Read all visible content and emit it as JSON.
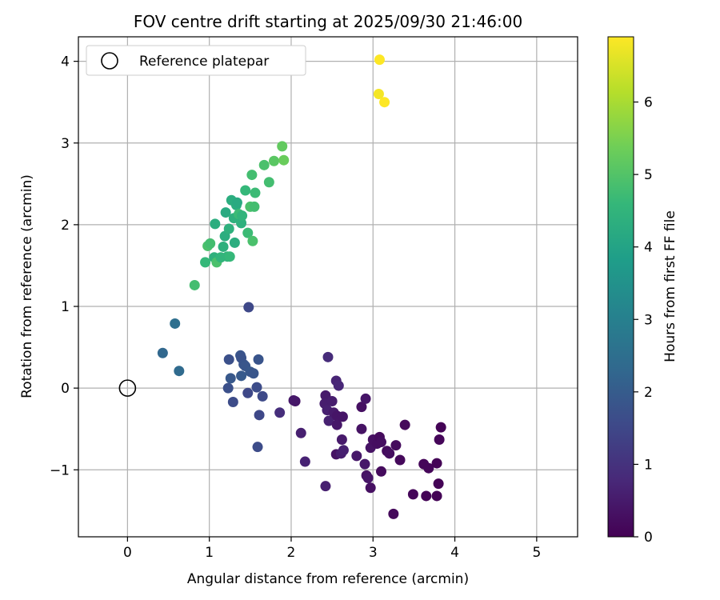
{
  "chart_data": {
    "type": "scatter",
    "title": "FOV centre drift starting at 2025/09/30 21:46:00",
    "xlabel": "Angular distance from reference (arcmin)",
    "ylabel": "Rotation from reference (arcmin)",
    "xlim": [
      -0.6,
      5.5
    ],
    "ylim": [
      -1.82,
      4.3
    ],
    "xticks": [
      0,
      1,
      2,
      3,
      4,
      5
    ],
    "yticks": [
      -1,
      0,
      1,
      2,
      3,
      4
    ],
    "ytick_labels": [
      "−1",
      "0",
      "1",
      "2",
      "3",
      "4"
    ],
    "grid": true,
    "legend": {
      "placement": "upper-left",
      "entries": [
        "Reference platepar"
      ]
    },
    "reference_point": {
      "x": 0,
      "y": 0,
      "label": "Reference platepar"
    },
    "colorbar": {
      "label": "Hours from first FF file",
      "min": 0,
      "max": 6.9,
      "ticks": [
        0,
        1,
        2,
        3,
        4,
        5,
        6
      ],
      "colormap": "viridis",
      "colors": [
        "#440154",
        "#482878",
        "#3e4989",
        "#31688e",
        "#26828e",
        "#1f9e89",
        "#35b779",
        "#6ece58",
        "#b5de2b",
        "#fde725"
      ]
    },
    "points": [
      {
        "x": 2.05,
        "y": -0.16,
        "hours": 0.4
      },
      {
        "x": 2.03,
        "y": -0.15,
        "hours": 0.45
      },
      {
        "x": 2.12,
        "y": -0.55,
        "hours": 0.6
      },
      {
        "x": 2.17,
        "y": -0.9,
        "hours": 0.65
      },
      {
        "x": 2.42,
        "y": -0.09,
        "hours": 0.5
      },
      {
        "x": 2.41,
        "y": -0.19,
        "hours": 0.55
      },
      {
        "x": 2.44,
        "y": -0.27,
        "hours": 0.6
      },
      {
        "x": 2.46,
        "y": -0.4,
        "hours": 0.62
      },
      {
        "x": 2.5,
        "y": -0.16,
        "hours": 0.55
      },
      {
        "x": 2.52,
        "y": -0.3,
        "hours": 0.5
      },
      {
        "x": 2.55,
        "y": 0.09,
        "hours": 0.7
      },
      {
        "x": 2.58,
        "y": 0.03,
        "hours": 0.75
      },
      {
        "x": 2.56,
        "y": -0.34,
        "hours": 0.4
      },
      {
        "x": 2.56,
        "y": -0.45,
        "hours": 0.45
      },
      {
        "x": 2.55,
        "y": -0.81,
        "hours": 0.35
      },
      {
        "x": 2.63,
        "y": -0.35,
        "hours": 0.4
      },
      {
        "x": 2.62,
        "y": -0.63,
        "hours": 0.5
      },
      {
        "x": 2.61,
        "y": -0.8,
        "hours": 0.55
      },
      {
        "x": 2.64,
        "y": -0.76,
        "hours": 0.6
      },
      {
        "x": 2.45,
        "y": 0.38,
        "hours": 0.85
      },
      {
        "x": 2.42,
        "y": -1.2,
        "hours": 0.6
      },
      {
        "x": 2.8,
        "y": -0.83,
        "hours": 0.45
      },
      {
        "x": 2.86,
        "y": -0.23,
        "hours": 0.3
      },
      {
        "x": 2.86,
        "y": -0.5,
        "hours": 0.35
      },
      {
        "x": 2.91,
        "y": -0.13,
        "hours": 0.4
      },
      {
        "x": 2.9,
        "y": -0.93,
        "hours": 0.45
      },
      {
        "x": 2.92,
        "y": -1.07,
        "hours": 0.35
      },
      {
        "x": 2.94,
        "y": -1.1,
        "hours": 0.4
      },
      {
        "x": 2.97,
        "y": -1.22,
        "hours": 0.3
      },
      {
        "x": 2.97,
        "y": -0.73,
        "hours": 0.35
      },
      {
        "x": 3.0,
        "y": -0.63,
        "hours": 0.3
      },
      {
        "x": 3.05,
        "y": -0.68,
        "hours": 0.25
      },
      {
        "x": 3.08,
        "y": -0.6,
        "hours": 0.2
      },
      {
        "x": 3.1,
        "y": -0.66,
        "hours": 0.25
      },
      {
        "x": 3.1,
        "y": -1.02,
        "hours": 0.2
      },
      {
        "x": 3.17,
        "y": -0.77,
        "hours": 0.2
      },
      {
        "x": 3.2,
        "y": -0.8,
        "hours": 0.25
      },
      {
        "x": 3.25,
        "y": -1.54,
        "hours": 0.15
      },
      {
        "x": 3.28,
        "y": -0.7,
        "hours": 0.2
      },
      {
        "x": 3.33,
        "y": -0.88,
        "hours": 0.15
      },
      {
        "x": 3.39,
        "y": -0.45,
        "hours": 0.15
      },
      {
        "x": 3.49,
        "y": -1.3,
        "hours": 0.1
      },
      {
        "x": 3.62,
        "y": -0.93,
        "hours": 0.1
      },
      {
        "x": 3.65,
        "y": -1.32,
        "hours": 0.05
      },
      {
        "x": 3.68,
        "y": -0.98,
        "hours": 0.1
      },
      {
        "x": 3.78,
        "y": -0.92,
        "hours": 0.05
      },
      {
        "x": 3.78,
        "y": -1.32,
        "hours": 0.05
      },
      {
        "x": 3.8,
        "y": -1.17,
        "hours": 0.05
      },
      {
        "x": 3.81,
        "y": -0.63,
        "hours": 0.1
      },
      {
        "x": 3.83,
        "y": -0.48,
        "hours": 0.05
      },
      {
        "x": 1.86,
        "y": -0.3,
        "hours": 0.9
      },
      {
        "x": 1.48,
        "y": 0.99,
        "hours": 1.5
      },
      {
        "x": 1.24,
        "y": 0.35,
        "hours": 1.7
      },
      {
        "x": 1.38,
        "y": 0.4,
        "hours": 1.8
      },
      {
        "x": 1.39,
        "y": 0.37,
        "hours": 1.75
      },
      {
        "x": 1.42,
        "y": 0.29,
        "hours": 1.8
      },
      {
        "x": 1.44,
        "y": 0.27,
        "hours": 1.85
      },
      {
        "x": 1.5,
        "y": 0.2,
        "hours": 1.9
      },
      {
        "x": 1.54,
        "y": 0.18,
        "hours": 1.85
      },
      {
        "x": 1.6,
        "y": 0.35,
        "hours": 1.8
      },
      {
        "x": 1.26,
        "y": 0.12,
        "hours": 1.9
      },
      {
        "x": 1.39,
        "y": 0.15,
        "hours": 1.95
      },
      {
        "x": 1.23,
        "y": 0.0,
        "hours": 1.7
      },
      {
        "x": 1.29,
        "y": -0.17,
        "hours": 1.6
      },
      {
        "x": 1.47,
        "y": -0.06,
        "hours": 1.5
      },
      {
        "x": 1.58,
        "y": 0.01,
        "hours": 1.6
      },
      {
        "x": 1.65,
        "y": -0.1,
        "hours": 1.55
      },
      {
        "x": 1.61,
        "y": -0.33,
        "hours": 1.5
      },
      {
        "x": 1.59,
        "y": -0.72,
        "hours": 1.6
      },
      {
        "x": 0.43,
        "y": 0.43,
        "hours": 2.3
      },
      {
        "x": 0.58,
        "y": 0.79,
        "hours": 2.5
      },
      {
        "x": 0.63,
        "y": 0.21,
        "hours": 2.4
      },
      {
        "x": 0.82,
        "y": 1.26,
        "hours": 4.8
      },
      {
        "x": 0.95,
        "y": 1.54,
        "hours": 4.6
      },
      {
        "x": 0.98,
        "y": 1.74,
        "hours": 4.9
      },
      {
        "x": 1.01,
        "y": 1.77,
        "hours": 4.8
      },
      {
        "x": 1.06,
        "y": 1.6,
        "hours": 4.4
      },
      {
        "x": 1.07,
        "y": 2.01,
        "hours": 4.3
      },
      {
        "x": 1.09,
        "y": 1.54,
        "hours": 4.9
      },
      {
        "x": 1.14,
        "y": 1.6,
        "hours": 4.5
      },
      {
        "x": 1.17,
        "y": 1.73,
        "hours": 4.4
      },
      {
        "x": 1.19,
        "y": 1.86,
        "hours": 4.3
      },
      {
        "x": 1.2,
        "y": 2.15,
        "hours": 4.2
      },
      {
        "x": 1.22,
        "y": 1.61,
        "hours": 4.5
      },
      {
        "x": 1.25,
        "y": 1.61,
        "hours": 4.6
      },
      {
        "x": 1.24,
        "y": 1.95,
        "hours": 4.4
      },
      {
        "x": 1.27,
        "y": 2.3,
        "hours": 4.3
      },
      {
        "x": 1.3,
        "y": 2.08,
        "hours": 4.4
      },
      {
        "x": 1.31,
        "y": 1.78,
        "hours": 4.3
      },
      {
        "x": 1.33,
        "y": 2.24,
        "hours": 4.3
      },
      {
        "x": 1.34,
        "y": 2.27,
        "hours": 4.2
      },
      {
        "x": 1.36,
        "y": 2.13,
        "hours": 4.7
      },
      {
        "x": 1.39,
        "y": 2.02,
        "hours": 4.4
      },
      {
        "x": 1.4,
        "y": 2.11,
        "hours": 4.5
      },
      {
        "x": 1.44,
        "y": 2.42,
        "hours": 4.6
      },
      {
        "x": 1.47,
        "y": 1.9,
        "hours": 4.7
      },
      {
        "x": 1.5,
        "y": 2.22,
        "hours": 4.9
      },
      {
        "x": 1.52,
        "y": 2.61,
        "hours": 4.8
      },
      {
        "x": 1.53,
        "y": 1.8,
        "hours": 4.9
      },
      {
        "x": 1.55,
        "y": 2.22,
        "hours": 4.8
      },
      {
        "x": 1.56,
        "y": 2.39,
        "hours": 4.7
      },
      {
        "x": 1.67,
        "y": 2.73,
        "hours": 4.9
      },
      {
        "x": 1.73,
        "y": 2.52,
        "hours": 4.8
      },
      {
        "x": 1.79,
        "y": 2.78,
        "hours": 5.1
      },
      {
        "x": 1.89,
        "y": 2.96,
        "hours": 5.2
      },
      {
        "x": 1.91,
        "y": 2.79,
        "hours": 5.3
      },
      {
        "x": 3.08,
        "y": 4.02,
        "hours": 6.9
      },
      {
        "x": 3.07,
        "y": 3.6,
        "hours": 6.8
      },
      {
        "x": 3.14,
        "y": 3.5,
        "hours": 6.9
      }
    ]
  }
}
